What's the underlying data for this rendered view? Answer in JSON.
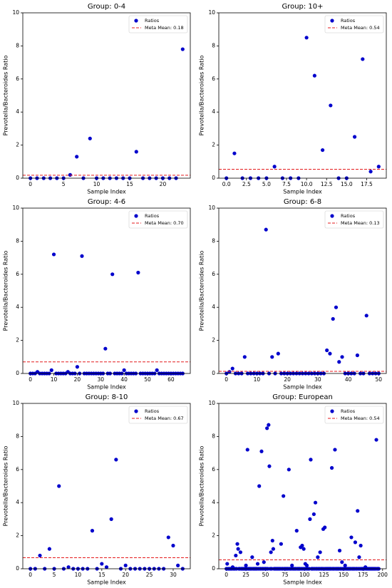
{
  "chart_data": [
    {
      "type": "scatter",
      "title": "Group: 0-4",
      "x_label": "Sample Index",
      "y_label": "Prevotella/Bacteroides Ratio",
      "legend": "upper right",
      "series": [
        {
          "name": "Ratios",
          "color": "#0000cc",
          "values": [
            0,
            0,
            0,
            0,
            0,
            0,
            0.2,
            1.3,
            0,
            2.4,
            0,
            0,
            0,
            0,
            0,
            0,
            1.6,
            0,
            0,
            0,
            0,
            0,
            0,
            7.8
          ]
        }
      ],
      "reference_line": {
        "name": "Meta Mean: 0.18",
        "value": 0.18,
        "color": "#e41a1c"
      },
      "xlim": [
        -1.15,
        24.15
      ],
      "xticks": [
        0,
        5,
        10,
        15,
        20
      ],
      "ylim": [
        0,
        10
      ],
      "yticks": [
        0,
        2,
        4,
        6,
        8,
        10
      ]
    },
    {
      "type": "scatter",
      "title": "Group: 10+",
      "x_label": "Sample Index",
      "y_label": "Prevotella/Bacteroides Ratio",
      "legend": "upper right",
      "series": [
        {
          "name": "Ratios",
          "color": "#0000cc",
          "values": [
            0,
            1.5,
            0,
            0,
            0,
            0,
            0.7,
            0,
            0,
            0,
            8.5,
            6.2,
            1.7,
            4.4,
            0,
            0,
            2.5,
            7.2,
            0.4,
            0.7
          ]
        }
      ],
      "reference_line": {
        "name": "Meta Mean: 0.54",
        "value": 0.54,
        "color": "#e41a1c"
      },
      "xlim": [
        -0.95,
        19.95
      ],
      "xticks": [
        {
          "value": 0,
          "label": "0.0"
        },
        2.5,
        {
          "value": 5,
          "label": "5.0"
        },
        7.5,
        {
          "value": 10,
          "label": "10.0"
        },
        12.5,
        {
          "value": 15,
          "label": "15.0"
        },
        17.5
      ],
      "ylim": [
        0,
        10
      ],
      "yticks": [
        0,
        2,
        4,
        6,
        8,
        10
      ]
    },
    {
      "type": "scatter",
      "title": "Group: 4-6",
      "x_label": "Sample Index",
      "y_label": "Prevotella/Bacteroides Ratio",
      "legend": "upper right",
      "series": [
        {
          "name": "Ratios",
          "color": "#0000cc",
          "values": [
            0,
            0,
            0,
            0.1,
            0,
            0,
            0,
            0,
            0,
            0.2,
            7.2,
            0,
            0,
            0,
            0,
            0,
            0.1,
            0,
            0,
            0,
            0.4,
            0,
            7.1,
            0,
            0,
            0,
            0,
            0,
            0,
            0,
            0,
            0,
            1.5,
            0,
            0,
            6.0,
            0,
            0,
            0,
            0,
            0.2,
            0,
            0,
            0,
            0,
            0,
            6.1,
            0,
            0,
            0,
            0,
            0,
            0,
            0,
            0.2,
            0,
            0,
            0,
            0,
            0,
            0,
            0,
            0,
            0,
            0,
            0
          ]
        }
      ],
      "reference_line": {
        "name": "Meta Mean: 0.70",
        "value": 0.7,
        "color": "#e41a1c"
      },
      "xlim": [
        -3.25,
        68.25
      ],
      "xticks": [
        0,
        10,
        20,
        30,
        40,
        50,
        60
      ],
      "ylim": [
        0,
        10
      ],
      "yticks": [
        0,
        2,
        4,
        6,
        8,
        10
      ]
    },
    {
      "type": "scatter",
      "title": "Group: 6-8",
      "x_label": "Sample Index",
      "y_label": "Prevotella/Bacteroides Ratio",
      "legend": "upper right",
      "series": [
        {
          "name": "Ratios",
          "color": "#0000cc",
          "values": [
            0,
            0.1,
            0.3,
            0,
            0,
            0,
            1.0,
            0,
            0,
            0,
            0,
            0,
            0,
            8.7,
            0,
            1.0,
            0,
            1.2,
            0,
            0,
            0,
            0,
            0,
            0,
            0,
            0,
            0,
            0,
            0,
            0,
            0,
            0,
            0,
            1.4,
            1.2,
            3.3,
            4.0,
            0.7,
            1.0,
            0,
            0,
            0,
            0,
            1.1,
            0,
            0,
            3.5,
            0,
            0,
            0,
            0
          ]
        }
      ],
      "reference_line": {
        "name": "Meta Mean: 0.13",
        "value": 0.13,
        "color": "#e41a1c"
      },
      "xlim": [
        -2.5,
        52.5
      ],
      "xticks": [
        0,
        10,
        20,
        30,
        40,
        50
      ],
      "ylim": [
        0,
        10
      ],
      "yticks": [
        0,
        2,
        4,
        6,
        8,
        10
      ]
    },
    {
      "type": "scatter",
      "title": "Group: 8-10",
      "x_label": "Sample Index",
      "y_label": "Prevotella/Bacteroides Ratio",
      "legend": "upper right",
      "series": [
        {
          "name": "Ratios",
          "color": "#0000cc",
          "values": [
            0,
            0,
            0.8,
            0,
            1.2,
            0,
            5.0,
            0,
            0.1,
            0,
            0,
            0,
            0,
            2.3,
            0,
            0.3,
            0.1,
            3.0,
            6.6,
            0,
            0.2,
            0,
            0,
            0,
            0,
            0,
            0,
            0,
            0,
            1.9,
            1.4,
            0.2,
            0
          ]
        }
      ],
      "reference_line": {
        "name": "Meta Mean: 0.67",
        "value": 0.67,
        "color": "#e41a1c"
      },
      "xlim": [
        -1.6,
        33.6
      ],
      "xticks": [
        0,
        5,
        10,
        15,
        20,
        25,
        30
      ],
      "ylim": [
        0,
        10
      ],
      "yticks": [
        0,
        2,
        4,
        6,
        8,
        10
      ]
    },
    {
      "type": "scatter",
      "title": "Group: European",
      "x_label": "Sample Index",
      "y_label": "Prevotella/Bacteroides Ratio",
      "legend": "upper right",
      "series": [
        {
          "name": "Ratios",
          "color": "#0000cc",
          "values": [
            0,
            0.3,
            0,
            0,
            0,
            0,
            0,
            0,
            0.1,
            0,
            0,
            0,
            0.8,
            0,
            1.5,
            1.2,
            0,
            0,
            1.0,
            0,
            0,
            0,
            0,
            0,
            0,
            0.2,
            0,
            7.2,
            0,
            0,
            0,
            0,
            0,
            0.7,
            0,
            0,
            0,
            0,
            0,
            0,
            0.3,
            0,
            5.0,
            0,
            0,
            7.1,
            0,
            0,
            0.4,
            0,
            0,
            0,
            8.5,
            0,
            8.7,
            6.2,
            0,
            1.0,
            0,
            1.7,
            1.2,
            0,
            0,
            0,
            0,
            0,
            0,
            0,
            0,
            0,
            1.5,
            0,
            0,
            4.4,
            0,
            0,
            0,
            0,
            0,
            0,
            6.0,
            0,
            0,
            0,
            0.2,
            0,
            0,
            0,
            0,
            0,
            2.3,
            0,
            0,
            0,
            0,
            1.3,
            0,
            1.4,
            0,
            1.2,
            0,
            0.3,
            0,
            0.2,
            0,
            0,
            0,
            3.0,
            6.6,
            0,
            0,
            0,
            3.3,
            0,
            4.0,
            0,
            0,
            0.7,
            0,
            0,
            1.0,
            0,
            0,
            0,
            2.4,
            0,
            2.5,
            0,
            0,
            0,
            0,
            0,
            0,
            0,
            0,
            6.1,
            0,
            0,
            0,
            7.2,
            0,
            0,
            0,
            0,
            0,
            1.1,
            0,
            0,
            0.4,
            0,
            0,
            0,
            0.2,
            0,
            0,
            0,
            0,
            0,
            0,
            0,
            1.9,
            0,
            0,
            0,
            0,
            1.6,
            0,
            0,
            3.5,
            0,
            0.7,
            0,
            1.4,
            0,
            0,
            0,
            0,
            0,
            0.1,
            0,
            0,
            0,
            0,
            0,
            0,
            0,
            0,
            0,
            0,
            0,
            0,
            0,
            7.8,
            0,
            0,
            0
          ]
        }
      ],
      "reference_line": {
        "name": "Meta Mean: 0.54",
        "value": 0.54,
        "color": "#e41a1c"
      },
      "xlim": [
        -9.75,
        204.75
      ],
      "xticks": [
        0,
        25,
        50,
        75,
        100,
        125,
        150,
        175,
        200
      ],
      "ylim": [
        0,
        10
      ],
      "yticks": [
        0,
        2,
        4,
        6,
        8,
        10
      ]
    }
  ]
}
